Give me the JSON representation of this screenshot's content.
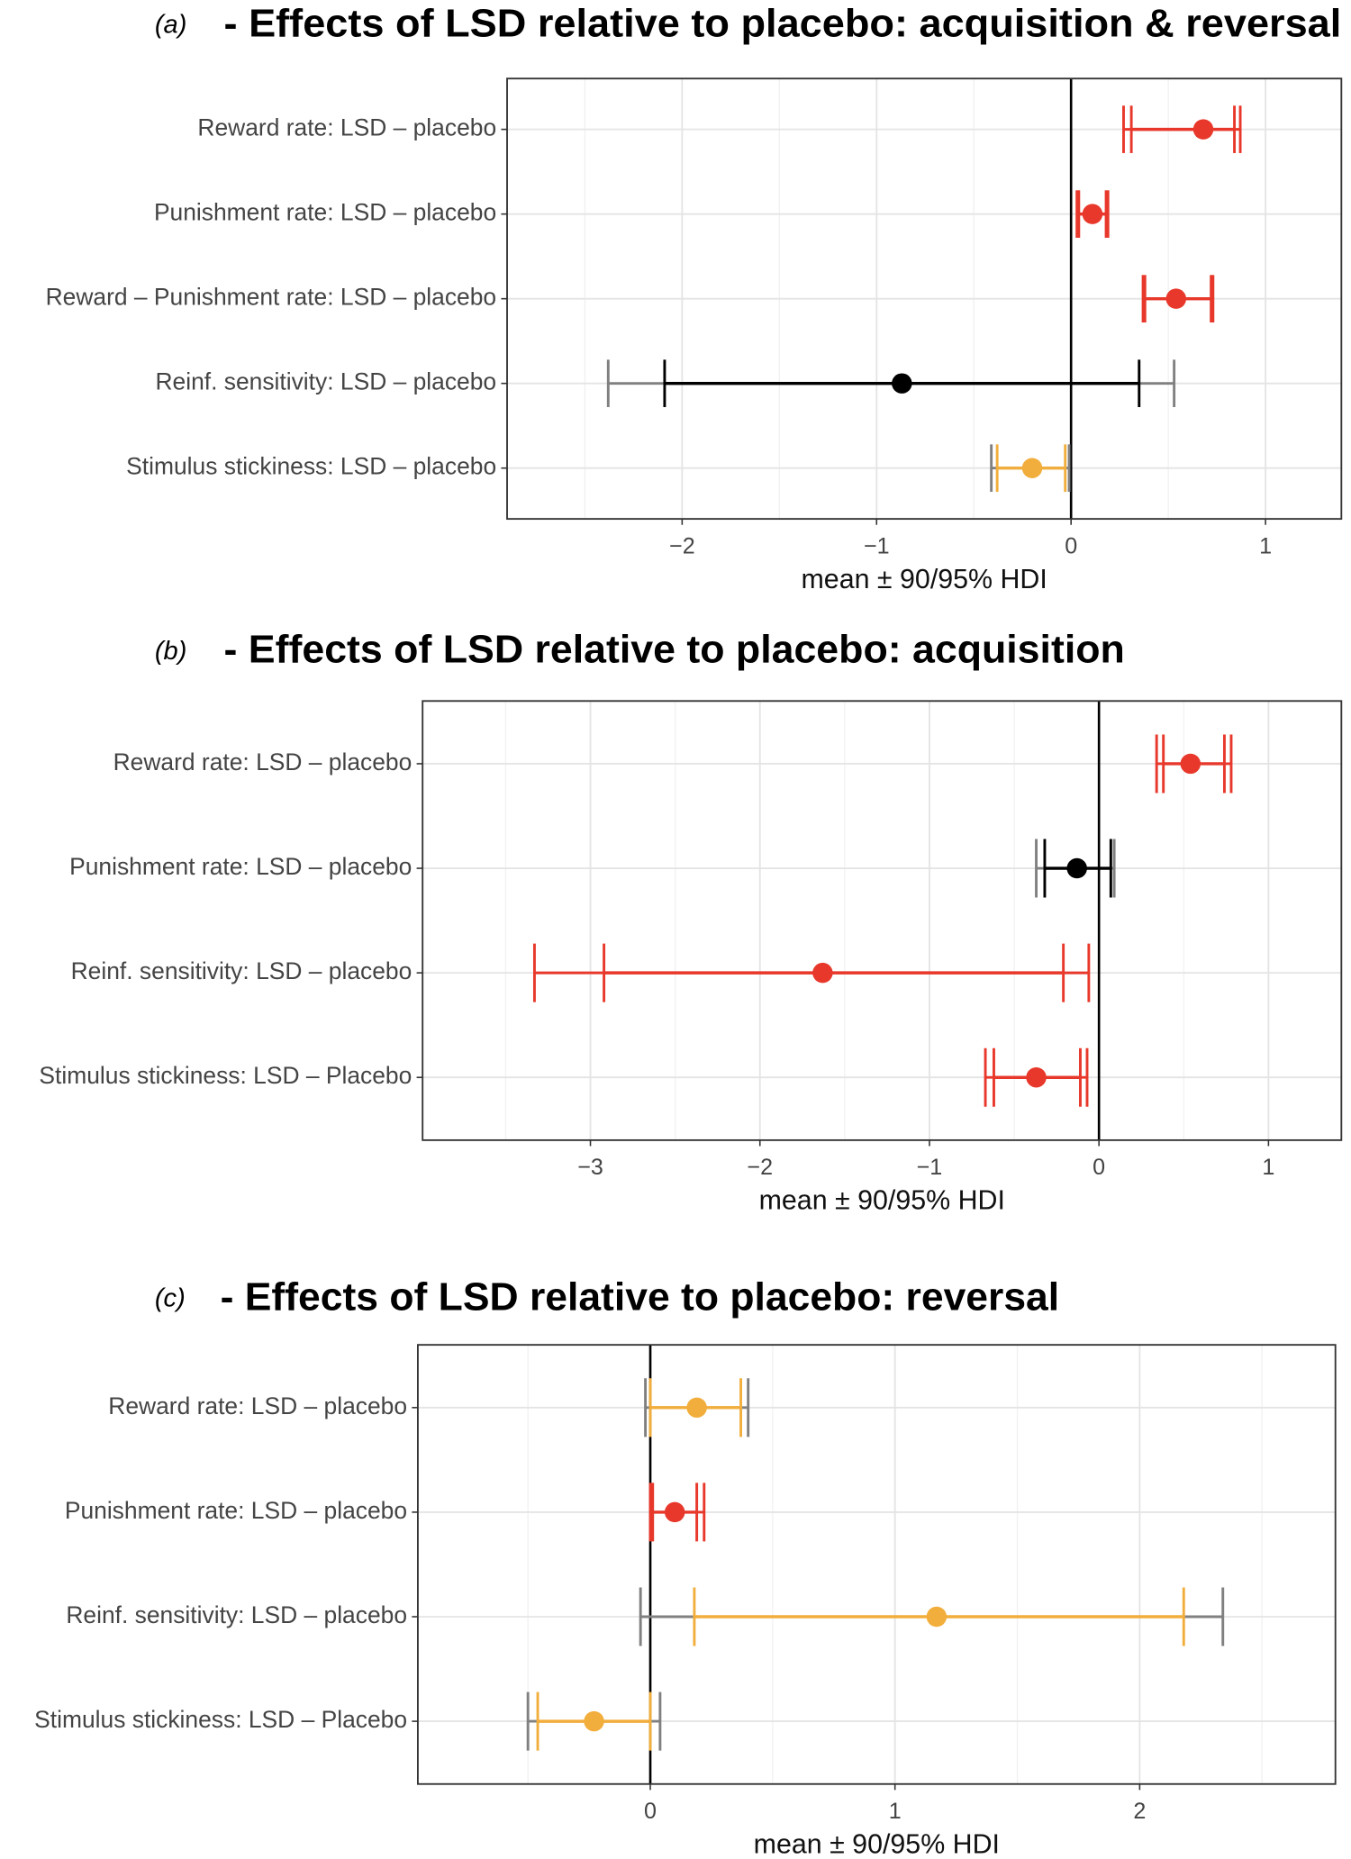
{
  "chart_data": [
    {
      "type": "forest",
      "panel": "(a)",
      "title": "- Effects of LSD relative to placebo: acquisition & reversal",
      "x_label": "mean ± 90/95% HDI",
      "categories": [
        "Reward rate: LSD – placebo",
        "Punishment rate: LSD – placebo",
        "Reward – Punishment rate: LSD – placebo",
        "Reinf. sensitivity: LSD – placebo",
        "Stimulus stickiness: LSD – placebo"
      ],
      "mean": [
        0.68,
        0.11,
        0.54,
        -0.87,
        -0.2
      ],
      "hdi90_low": [
        0.31,
        0.04,
        0.38,
        -2.09,
        -0.38
      ],
      "hdi90_high": [
        0.84,
        0.18,
        0.72,
        0.35,
        -0.03
      ],
      "hdi95_low": [
        0.27,
        0.03,
        0.37,
        -2.38,
        -0.41
      ],
      "hdi95_high": [
        0.87,
        0.19,
        0.73,
        0.53,
        -0.01
      ],
      "colors": [
        "#e8382b",
        "#e8382b",
        "#e8382b",
        "#000000",
        "#f2ae3c"
      ],
      "colors95": [
        "#e8382b",
        "#e8382b",
        "#e8382b",
        "#808080",
        "#808080"
      ],
      "xlim": [
        -2.9,
        1.39
      ],
      "xticks": [
        {
          "value": -2,
          "label": "−2"
        },
        {
          "value": -1,
          "label": "−1"
        },
        0,
        1
      ],
      "xminor": [
        -2.5,
        -1.5,
        -0.5,
        0.5
      ],
      "grid": true,
      "zero_line": true
    },
    {
      "type": "forest",
      "panel": "(b)",
      "title": "- Effects of LSD relative to placebo: acquisition",
      "x_label": "mean ± 90/95% HDI",
      "categories": [
        "Reward rate: LSD – placebo",
        "Punishment rate: LSD – placebo",
        "Reinf. sensitivity: LSD – placebo",
        "Stimulus stickiness: LSD – Placebo"
      ],
      "mean": [
        0.54,
        -0.13,
        -1.63,
        -0.37
      ],
      "hdi90_low": [
        0.38,
        -0.32,
        -2.92,
        -0.62
      ],
      "hdi90_high": [
        0.74,
        0.07,
        -0.21,
        -0.11
      ],
      "hdi95_low": [
        0.34,
        -0.37,
        -3.33,
        -0.67
      ],
      "hdi95_high": [
        0.78,
        0.09,
        -0.06,
        -0.07
      ],
      "colors": [
        "#e8382b",
        "#000000",
        "#e8382b",
        "#e8382b"
      ],
      "colors95": [
        "#e8382b",
        "#808080",
        "#e8382b",
        "#e8382b"
      ],
      "xlim": [
        -3.99,
        1.43
      ],
      "xticks": [
        {
          "value": -3,
          "label": "−3"
        },
        {
          "value": -2,
          "label": "−2"
        },
        {
          "value": -1,
          "label": "−1"
        },
        0,
        1
      ],
      "xminor": [
        -3.5,
        -2.5,
        -1.5,
        -0.5,
        0.5
      ],
      "grid": true,
      "zero_line": true
    },
    {
      "type": "forest",
      "panel": "(c)",
      "title": "- Effects of LSD relative to placebo: reversal",
      "x_label": "mean ± 90/95% HDI",
      "categories": [
        "Reward rate: LSD – placebo",
        "Punishment rate: LSD – placebo",
        "Reinf. sensitivity: LSD – placebo",
        "Stimulus stickiness: LSD – Placebo"
      ],
      "mean": [
        0.19,
        0.1,
        1.17,
        -0.23
      ],
      "hdi90_low": [
        0.0,
        0.01,
        0.18,
        -0.46
      ],
      "hdi90_high": [
        0.37,
        0.19,
        2.18,
        0.0
      ],
      "hdi95_low": [
        -0.02,
        0.0,
        -0.04,
        -0.5
      ],
      "hdi95_high": [
        0.4,
        0.22,
        2.34,
        0.04
      ],
      "colors": [
        "#f2ae3c",
        "#e8382b",
        "#f2ae3c",
        "#f2ae3c"
      ],
      "colors95": [
        "#808080",
        "#e8382b",
        "#808080",
        "#808080"
      ],
      "xlim": [
        -0.95,
        2.8
      ],
      "xticks": [
        0,
        1,
        2
      ],
      "xminor": [
        -0.5,
        0.5,
        1.5,
        2.5
      ],
      "grid": true,
      "zero_line": true
    }
  ]
}
